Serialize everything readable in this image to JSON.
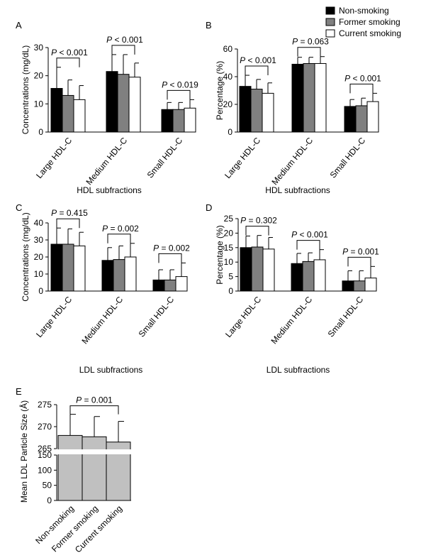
{
  "legend": {
    "placement": "top-right",
    "items": [
      {
        "label": "Non-smoking",
        "color": "#000000"
      },
      {
        "label": "Former smoking",
        "color": "#808080"
      },
      {
        "label": "Current smoking",
        "color": "#ffffff"
      }
    ]
  },
  "chart_data": [
    {
      "panel": "A",
      "type": "bar",
      "ylabel": "Concentrations (mg/dL)",
      "xlabel": "HDL subfractions",
      "ylim": [
        0,
        30
      ],
      "yticks": [
        0,
        10,
        20,
        30
      ],
      "categories": [
        "Large HDL-C",
        "Medium HDL-C",
        "Small HDL-C"
      ],
      "series": [
        {
          "name": "Non-smoking",
          "values": [
            15.5,
            21.5,
            8
          ],
          "errors": [
            7.5,
            6,
            2.5
          ]
        },
        {
          "name": "Former smoking",
          "values": [
            13,
            20.5,
            8
          ],
          "errors": [
            5.5,
            7,
            2.5
          ]
        },
        {
          "name": "Current smoking",
          "values": [
            11.5,
            19.5,
            8.5
          ],
          "errors": [
            5,
            5,
            3
          ]
        }
      ],
      "annotations": [
        {
          "pre": "P",
          "text": " < 0.001"
        },
        {
          "pre": "P",
          "text": " < 0.001"
        },
        {
          "pre": "P",
          "text": " < 0.019"
        }
      ]
    },
    {
      "panel": "B",
      "type": "bar",
      "ylabel": "Percentage (%)",
      "xlabel": "HDL subfractions",
      "ylim": [
        0,
        60
      ],
      "yticks": [
        0,
        20,
        40,
        60
      ],
      "categories": [
        "Large HDL-C",
        "Medium HDL-C",
        "Small HDL-C"
      ],
      "series": [
        {
          "name": "Non-smoking",
          "values": [
            33,
            49,
            18.5
          ],
          "errors": [
            8,
            5,
            5
          ]
        },
        {
          "name": "Former smoking",
          "values": [
            31,
            49.5,
            19
          ],
          "errors": [
            7,
            4.5,
            5.5
          ]
        },
        {
          "name": "Current smoking",
          "values": [
            28,
            49.5,
            22
          ],
          "errors": [
            7.5,
            5,
            6
          ]
        }
      ],
      "annotations": [
        {
          "pre": "P",
          "text": " < 0.001"
        },
        {
          "pre": "P",
          "text": " = 0.063"
        },
        {
          "pre": "P",
          "text": " < 0.001"
        }
      ]
    },
    {
      "panel": "C",
      "type": "bar",
      "ylabel": "Concentrations (mg/dL)",
      "xlabel": "LDL subfractions",
      "ylim": [
        0,
        40
      ],
      "yticks": [
        0,
        10,
        20,
        30,
        40
      ],
      "categories": [
        "Large HDL-C",
        "Medium HDL-C",
        "Small HDL-C"
      ],
      "series": [
        {
          "name": "Non-smoking",
          "values": [
            27.5,
            18,
            6.5
          ],
          "errors": [
            9.5,
            7.5,
            6
          ]
        },
        {
          "name": "Former smoking",
          "values": [
            27.5,
            18.5,
            6.5
          ],
          "errors": [
            9,
            8,
            6
          ]
        },
        {
          "name": "Current smoking",
          "values": [
            26.5,
            20,
            8.5
          ],
          "errors": [
            8,
            8,
            8
          ]
        }
      ],
      "annotations": [
        {
          "pre": "P",
          "text": " = 0.415"
        },
        {
          "pre": "P",
          "text": " = 0.002"
        },
        {
          "pre": "P",
          "text": " = 0.002"
        }
      ]
    },
    {
      "panel": "D",
      "type": "bar",
      "ylabel": "Percentage (%)",
      "xlabel": "LDL subfractions",
      "ylim": [
        0,
        25
      ],
      "yticks": [
        0,
        5,
        10,
        15,
        20,
        25
      ],
      "categories": [
        "Large HDL-C",
        "Medium HDL-C",
        "Small HDL-C"
      ],
      "series": [
        {
          "name": "Non-smoking",
          "values": [
            15,
            9.5,
            3.5
          ],
          "errors": [
            4,
            3.5,
            3.5
          ]
        },
        {
          "name": "Former smoking",
          "values": [
            15.2,
            10.2,
            3.5
          ],
          "errors": [
            4,
            3,
            3.5
          ]
        },
        {
          "name": "Current smoking",
          "values": [
            14.5,
            10.8,
            4.5
          ],
          "errors": [
            4,
            3.5,
            4
          ]
        }
      ],
      "annotations": [
        {
          "pre": "P",
          "text": " = 0.302"
        },
        {
          "pre": "P",
          "text": " < 0.001"
        },
        {
          "pre": "P",
          "text": " = 0.001"
        }
      ]
    },
    {
      "panel": "E",
      "type": "bar",
      "ylabel": "Mean LDL Particle Size (Å)",
      "ylim": [
        0,
        275
      ],
      "axis_break": [
        150,
        265
      ],
      "yticks": [
        0,
        50,
        100,
        150,
        265,
        270,
        275
      ],
      "categories": [
        "Non-smoking",
        "Former smoking",
        "Current smoking"
      ],
      "values": [
        268,
        267.7,
        266.5
      ],
      "errors": [
        4.8,
        4.6,
        4.7
      ],
      "color": "#c0c0c0",
      "annotations": [
        {
          "pre": "P",
          "text": " = 0.001"
        }
      ]
    }
  ]
}
